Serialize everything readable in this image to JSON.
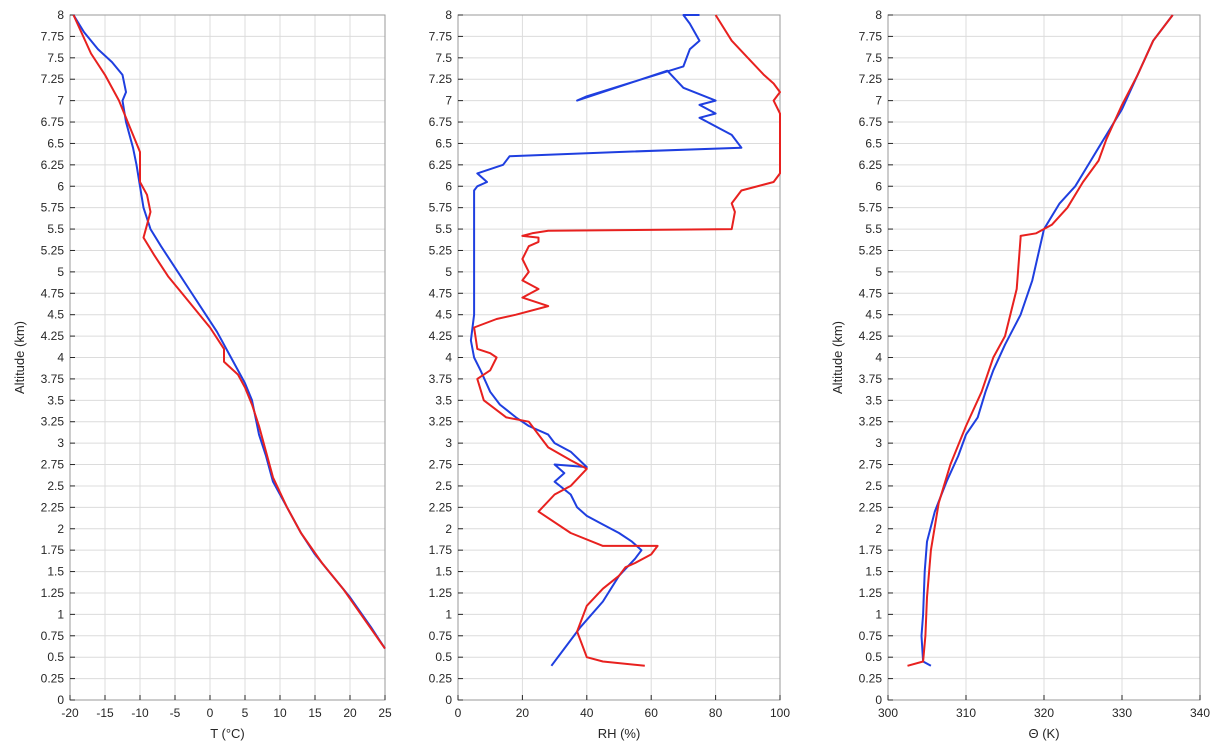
{
  "chart_data": [
    {
      "type": "line",
      "xlabel": "T (°C)",
      "ylabel": "Altitude (km)",
      "xlim": [
        -20,
        25
      ],
      "ylim": [
        0,
        8
      ],
      "xticks": [
        "-20",
        "-15",
        "-10",
        "-5",
        "0",
        "5",
        "10",
        "15",
        "20",
        "25"
      ],
      "yticks": [
        "0",
        "0.25",
        "0.5",
        "0.75",
        "1",
        "1.25",
        "1.5",
        "1.75",
        "2",
        "2.25",
        "2.5",
        "2.75",
        "3",
        "3.25",
        "3.5",
        "3.75",
        "4",
        "4.25",
        "4.5",
        "4.75",
        "5",
        "5.25",
        "5.5",
        "5.75",
        "6",
        "6.25",
        "6.5",
        "6.75",
        "7",
        "7.25",
        "7.5",
        "7.75",
        "8"
      ],
      "grid": true,
      "series": [
        {
          "color": "#1f3fe0",
          "x": [
            25,
            23,
            20,
            17,
            15,
            13,
            11,
            9,
            8,
            7,
            6.5,
            6,
            5,
            3,
            1,
            -1,
            -3,
            -5,
            -7,
            -8.5,
            -9.5,
            -10,
            -10.5,
            -11,
            -12,
            -12.5,
            -12,
            -12.5,
            -14,
            -16,
            -18,
            -19.5
          ],
          "y": [
            0.6,
            0.85,
            1.2,
            1.5,
            1.7,
            1.95,
            2.25,
            2.55,
            2.85,
            3.1,
            3.3,
            3.5,
            3.7,
            4.0,
            4.3,
            4.55,
            4.8,
            5.05,
            5.3,
            5.5,
            5.75,
            6.0,
            6.25,
            6.45,
            6.75,
            7.0,
            7.1,
            7.3,
            7.45,
            7.6,
            7.8,
            8.0
          ]
        },
        {
          "color": "#e8211f",
          "x": [
            25,
            22,
            19,
            16,
            13,
            11,
            9,
            8,
            7,
            6,
            5,
            4,
            2,
            2,
            0,
            -2,
            -4,
            -6,
            -8,
            -9.5,
            -9,
            -8.5,
            -9,
            -10,
            -10,
            -10,
            -11,
            -12,
            -13,
            -15,
            -17,
            -19.5
          ],
          "y": [
            0.6,
            0.95,
            1.3,
            1.6,
            1.95,
            2.25,
            2.6,
            2.9,
            3.2,
            3.45,
            3.65,
            3.8,
            3.95,
            4.1,
            4.35,
            4.55,
            4.75,
            4.95,
            5.2,
            5.4,
            5.55,
            5.7,
            5.9,
            6.05,
            6.25,
            6.4,
            6.6,
            6.8,
            7.0,
            7.3,
            7.55,
            8.0
          ]
        }
      ]
    },
    {
      "type": "line",
      "xlabel": "RH (%)",
      "ylabel": "",
      "xlim": [
        0,
        100
      ],
      "ylim": [
        0,
        8
      ],
      "xticks": [
        "0",
        "20",
        "40",
        "60",
        "80",
        "100"
      ],
      "yticks": [
        "0",
        "0.25",
        "0.5",
        "0.75",
        "1",
        "1.25",
        "1.5",
        "1.75",
        "2",
        "2.25",
        "2.5",
        "2.75",
        "3",
        "3.25",
        "3.5",
        "3.75",
        "4",
        "4.25",
        "4.5",
        "4.75",
        "5",
        "5.25",
        "5.5",
        "5.75",
        "6",
        "6.25",
        "6.5",
        "6.75",
        "7",
        "7.25",
        "7.5",
        "7.75",
        "8"
      ],
      "grid": true,
      "series": [
        {
          "color": "#1f3fe0",
          "x": [
            29,
            33,
            38,
            45,
            50,
            55,
            57,
            54,
            50,
            45,
            40,
            37,
            35,
            30,
            33,
            30,
            40,
            35,
            30,
            28,
            22,
            18,
            13,
            10,
            7,
            5,
            4,
            5,
            5,
            5,
            5,
            5,
            5,
            5,
            5,
            6,
            9,
            6,
            14,
            16,
            50,
            88,
            85,
            75,
            80,
            75,
            80,
            70,
            65,
            37,
            40,
            70,
            72,
            75,
            72,
            70,
            75
          ],
          "y": [
            0.4,
            0.6,
            0.85,
            1.15,
            1.45,
            1.65,
            1.75,
            1.85,
            1.95,
            2.05,
            2.15,
            2.25,
            2.4,
            2.55,
            2.65,
            2.75,
            2.72,
            2.9,
            3.0,
            3.1,
            3.2,
            3.3,
            3.45,
            3.6,
            3.85,
            4.0,
            4.2,
            4.5,
            4.8,
            5.2,
            5.5,
            5.65,
            5.75,
            5.85,
            5.95,
            6.0,
            6.05,
            6.15,
            6.25,
            6.35,
            6.4,
            6.45,
            6.6,
            6.8,
            6.85,
            6.95,
            7.0,
            7.15,
            7.35,
            7.0,
            7.05,
            7.4,
            7.6,
            7.7,
            7.9,
            8.0,
            8.0
          ]
        },
        {
          "color": "#e8211f",
          "x": [
            58,
            45,
            40,
            37,
            40,
            45,
            50,
            52,
            55,
            60,
            62,
            45,
            35,
            25,
            30,
            35,
            40,
            35,
            28,
            25,
            22,
            15,
            8,
            6,
            10,
            12,
            10,
            6,
            5,
            12,
            18,
            28,
            20,
            25,
            20,
            22,
            20,
            22,
            25,
            25,
            20,
            23,
            28,
            85,
            86,
            85,
            88,
            98,
            100,
            100,
            100,
            98,
            100,
            98,
            95,
            90,
            85,
            80
          ],
          "y": [
            0.4,
            0.45,
            0.5,
            0.8,
            1.1,
            1.3,
            1.45,
            1.55,
            1.6,
            1.7,
            1.8,
            1.8,
            1.95,
            2.2,
            2.4,
            2.5,
            2.7,
            2.8,
            2.95,
            3.1,
            3.25,
            3.3,
            3.5,
            3.75,
            3.85,
            4.0,
            4.05,
            4.1,
            4.35,
            4.45,
            4.5,
            4.6,
            4.7,
            4.8,
            4.9,
            5.0,
            5.15,
            5.3,
            5.35,
            5.4,
            5.42,
            5.45,
            5.48,
            5.5,
            5.7,
            5.8,
            5.95,
            6.05,
            6.15,
            6.5,
            6.85,
            7.0,
            7.1,
            7.2,
            7.3,
            7.5,
            7.7,
            8.0
          ]
        }
      ]
    },
    {
      "type": "line",
      "xlabel": "Θ (K)",
      "ylabel": "Altitude (km)",
      "xlim": [
        300,
        340
      ],
      "ylim": [
        0,
        8
      ],
      "xticks": [
        "300",
        "310",
        "320",
        "330",
        "340"
      ],
      "yticks": [
        "0",
        "0.25",
        "0.5",
        "0.75",
        "1",
        "1.25",
        "1.5",
        "1.75",
        "2",
        "2.25",
        "2.5",
        "2.75",
        "3",
        "3.25",
        "3.5",
        "3.75",
        "4",
        "4.25",
        "4.5",
        "4.75",
        "5",
        "5.25",
        "5.5",
        "5.75",
        "6",
        "6.25",
        "6.5",
        "6.75",
        "7",
        "7.25",
        "7.5",
        "7.75",
        "8"
      ],
      "grid": true,
      "series": [
        {
          "color": "#1f3fe0",
          "x": [
            305.5,
            304.5,
            304.3,
            304.5,
            304.7,
            305,
            306,
            307.5,
            309,
            310,
            311.5,
            312.5,
            313.5,
            315,
            317,
            318.5,
            319.5,
            320,
            321,
            322,
            324,
            326,
            327,
            328,
            330,
            332,
            334,
            336.5
          ],
          "y": [
            0.4,
            0.45,
            0.75,
            1.0,
            1.5,
            1.85,
            2.2,
            2.55,
            2.85,
            3.1,
            3.3,
            3.6,
            3.85,
            4.15,
            4.5,
            4.9,
            5.3,
            5.5,
            5.65,
            5.8,
            6.0,
            6.3,
            6.45,
            6.6,
            6.9,
            7.3,
            7.7,
            8.0
          ]
        },
        {
          "color": "#e8211f",
          "x": [
            302.5,
            304.5,
            304.8,
            305,
            305.5,
            306.5,
            308,
            310,
            312,
            313.5,
            315,
            316.5,
            317,
            317,
            319,
            321,
            323,
            325,
            327,
            328,
            330,
            332,
            334,
            336.5
          ],
          "y": [
            0.4,
            0.45,
            0.75,
            1.2,
            1.75,
            2.3,
            2.75,
            3.2,
            3.6,
            4.0,
            4.25,
            4.8,
            5.4,
            5.42,
            5.45,
            5.55,
            5.75,
            6.05,
            6.3,
            6.55,
            6.95,
            7.3,
            7.7,
            8.0
          ]
        }
      ]
    }
  ]
}
